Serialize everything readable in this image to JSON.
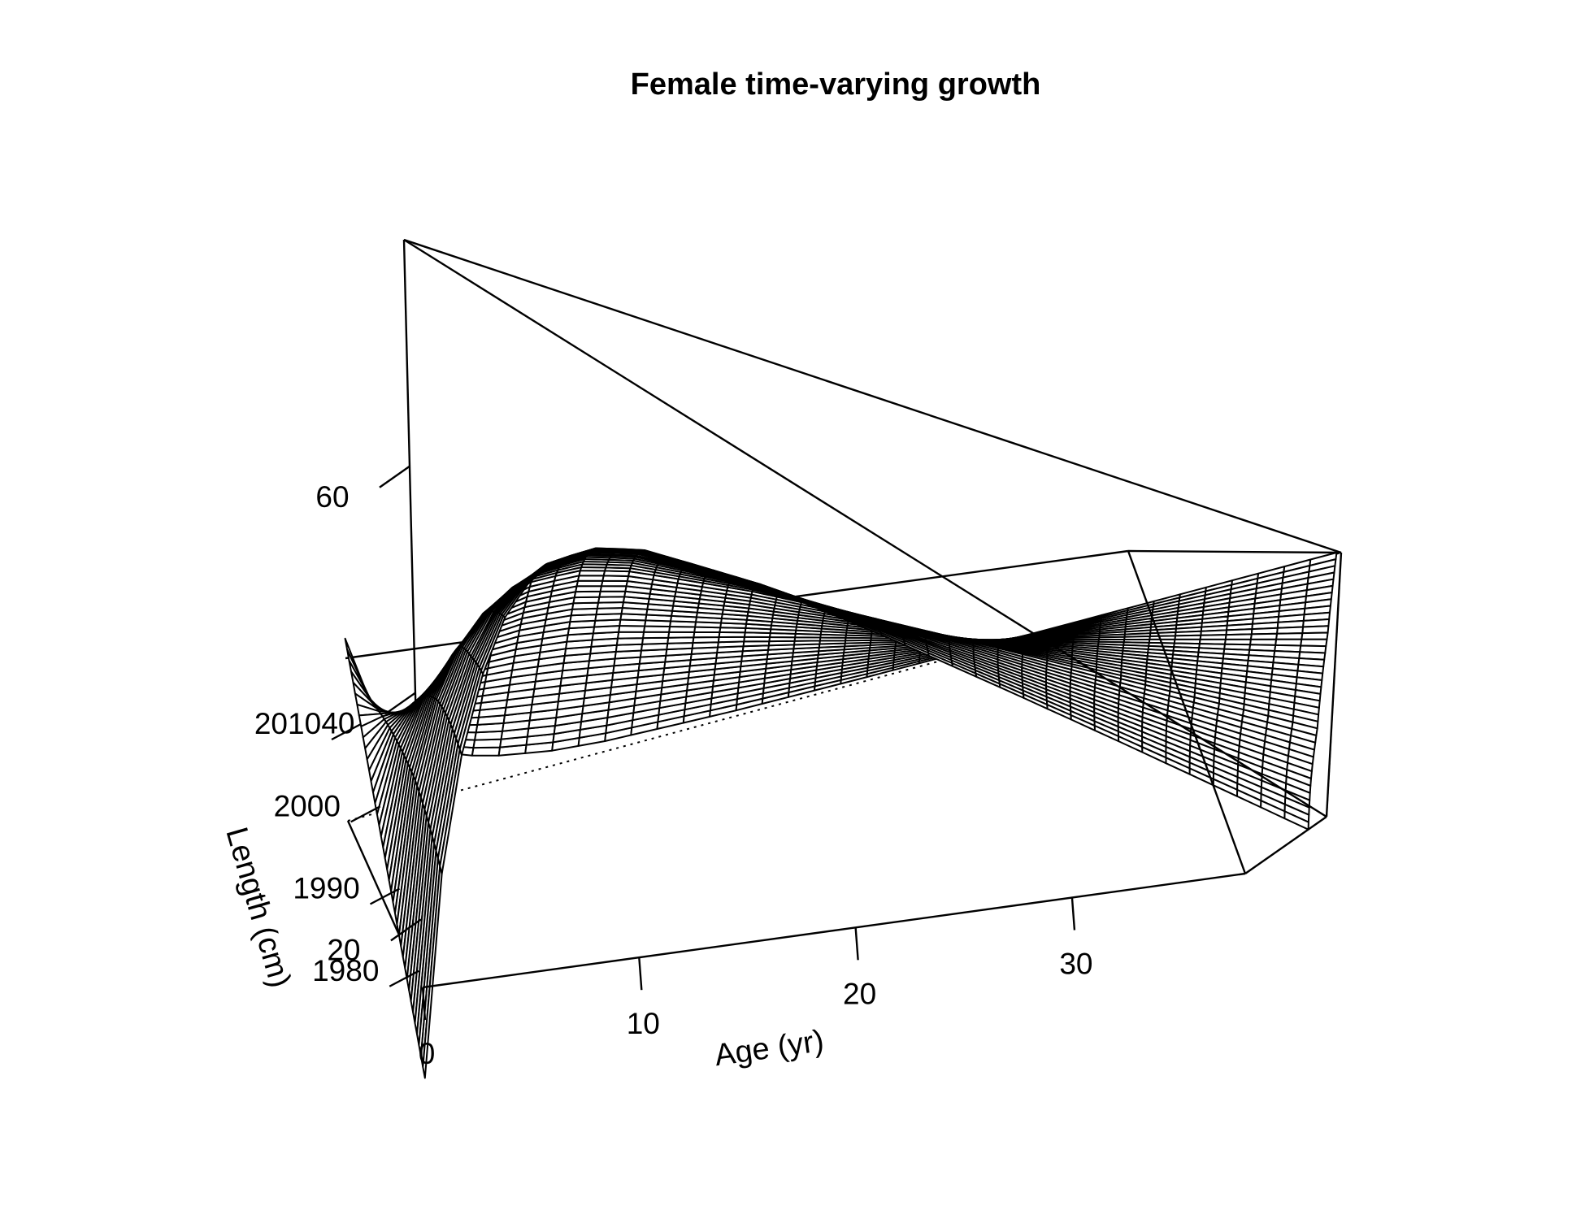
{
  "chart_data": {
    "type": "surface",
    "title": "Female time-varying growth",
    "xlabel": "Age (yr)",
    "ylabel": "",
    "zlabel": "Length (cm)",
    "x_ticks": [
      "0",
      "10",
      "20",
      "30"
    ],
    "y_ticks": [
      "1980",
      "1990",
      "2000",
      "2010"
    ],
    "z_ticks": [
      "20",
      "40",
      "60"
    ],
    "x_range": [
      0,
      38
    ],
    "y_range": [
      1978,
      2018
    ],
    "z_range": [
      14,
      80
    ],
    "grid": false,
    "series": [
      {
        "ages": [
          0,
          1,
          2,
          3,
          4,
          5,
          6,
          8,
          10,
          15,
          20,
          25,
          30,
          38
        ],
        "years": [
          1978,
          1985,
          1992,
          1999,
          2006,
          2012,
          2018
        ],
        "length_at_age": {
          "1978": [
            6,
            24,
            35,
            43,
            49,
            53,
            56,
            59.5,
            61.5,
            63.5,
            64.3,
            64.7,
            65,
            65.2
          ],
          "1985": [
            6,
            26,
            38,
            46,
            52,
            56,
            59,
            63,
            65,
            67,
            67.8,
            68.2,
            68.4,
            68.6
          ],
          "1992": [
            6,
            28,
            41,
            50,
            56,
            60,
            63,
            67,
            69,
            71,
            71.8,
            72.2,
            72.4,
            72.6
          ],
          "1999": [
            6,
            29,
            43,
            52,
            58,
            62,
            65,
            69,
            71,
            73,
            73.8,
            74.2,
            74.4,
            74.6
          ],
          "2006": [
            6,
            30,
            44,
            54,
            60,
            64,
            67,
            71,
            73,
            75,
            75.8,
            76.2,
            76.4,
            76.6
          ],
          "2012": [
            6,
            31,
            45,
            55,
            61,
            65,
            68,
            72,
            74,
            76,
            76.8,
            77.2,
            77.4,
            77.6
          ],
          "2018": [
            6,
            31,
            46,
            56,
            62,
            66,
            69,
            73,
            75,
            77,
            77.8,
            78.2,
            78.4,
            78.6
          ]
        }
      }
    ]
  }
}
